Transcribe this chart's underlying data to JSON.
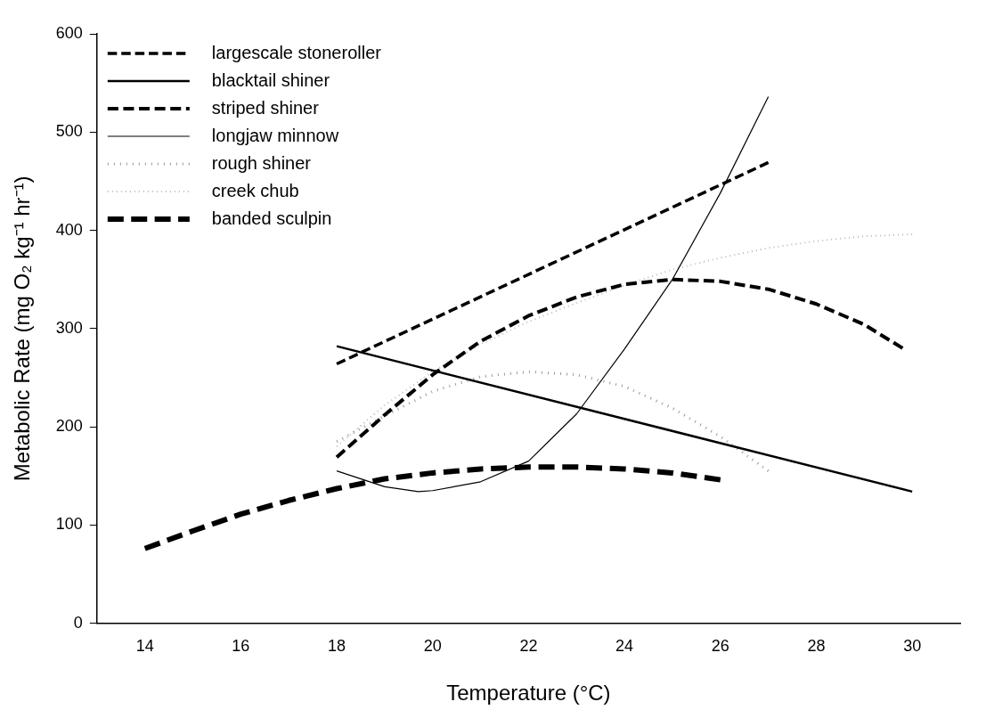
{
  "chart_data": {
    "type": "line",
    "xlabel": "Temperature (°C)",
    "ylabel": "Metabolic Rate (mg O₂ kg⁻¹ hr⁻¹)",
    "xlim": [
      13,
      31
    ],
    "xticks": [
      14,
      16,
      18,
      20,
      22,
      24,
      26,
      28,
      30
    ],
    "ylim": [
      0,
      600
    ],
    "yticks": [
      0,
      100,
      200,
      300,
      400,
      500,
      600
    ],
    "grid": false,
    "legend": "top left",
    "marker": "none",
    "series": [
      {
        "name": "largescale stoneroller",
        "color": "#000000",
        "line_style": "dashed",
        "x": [
          18,
          27
        ],
        "values": [
          264,
          469
        ]
      },
      {
        "name": "blacktail shiner",
        "color": "#000000",
        "line_style": "solid",
        "x": [
          18,
          30
        ],
        "values": [
          282,
          134
        ]
      },
      {
        "name": "striped shiner",
        "color": "#000000",
        "line_style": "dashed",
        "x": [
          18,
          19,
          20,
          21,
          22,
          23,
          24,
          25,
          26,
          27,
          28,
          29,
          29.8
        ],
        "values": [
          169,
          212,
          253,
          287,
          313,
          332,
          345,
          350,
          348,
          340,
          325,
          304,
          280
        ]
      },
      {
        "name": "longjaw minnow",
        "color": "#000000",
        "line_style": "solid",
        "x": [
          18,
          19,
          19.7,
          20,
          21,
          22,
          23,
          24,
          25,
          26,
          27
        ],
        "values": [
          155,
          139,
          134,
          135,
          144,
          165,
          213,
          279,
          350,
          438,
          536
        ]
      },
      {
        "name": "rough shiner",
        "color": "#999999",
        "line_style": "dotted",
        "x": [
          18,
          19,
          20,
          21,
          22,
          23,
          24,
          25,
          26,
          27
        ],
        "values": [
          185,
          211,
          236,
          251,
          256,
          253,
          241,
          219,
          190,
          155
        ]
      },
      {
        "name": "creek chub",
        "color": "#bbbbbb",
        "line_style": "dotted",
        "x": [
          18,
          19,
          20,
          21,
          22,
          23,
          24,
          25,
          26,
          27,
          28,
          29,
          30
        ],
        "values": [
          180,
          222,
          256,
          284,
          307,
          326,
          344,
          360,
          372,
          382,
          389,
          394,
          396
        ]
      },
      {
        "name": "banded sculpin",
        "color": "#000000",
        "line_style": "dashed",
        "x": [
          14,
          15,
          16,
          17,
          18,
          19,
          20,
          21,
          22,
          23,
          24,
          25,
          26
        ],
        "values": [
          76,
          94,
          111,
          125,
          137,
          147,
          153,
          157,
          159,
          159,
          157,
          153,
          146
        ]
      }
    ]
  }
}
